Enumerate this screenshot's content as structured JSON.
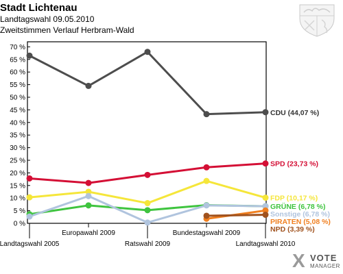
{
  "header": {
    "title": "Stadt Lichtenau",
    "subtitle": "Landtagswahl 09.05.2010",
    "subtitle2": "Zweitstimmen Verlauf Herbram-Wald"
  },
  "logo": {
    "mark": "X",
    "word1": "VOTE",
    "word2": "MANAGER"
  },
  "crest": {
    "icon": "nrw-coat-of-arms-icon"
  },
  "chart_data": {
    "type": "line",
    "title": "Stadt Lichtenau",
    "categories": [
      "Landtagswahl 2005",
      "Europawahl 2009",
      "Ratswahl 2009",
      "Bundestagswahl 2009",
      "Landtagswahl 2010"
    ],
    "ylim": [
      0,
      72
    ],
    "yticks": [
      "0 %",
      "5 %",
      "10 %",
      "15 %",
      "20 %",
      "25 %",
      "30 %",
      "35 %",
      "40 %",
      "45 %",
      "50 %",
      "55 %",
      "60 %",
      "65 %",
      "70 %"
    ],
    "grid": false,
    "series": [
      {
        "name": "CDU",
        "label": "CDU (44,07 %)",
        "color": "#4d4d4d",
        "values": [
          66.5,
          54.5,
          68,
          43.3,
          44.07
        ]
      },
      {
        "name": "SPD",
        "label": "SPD (23,73 %)",
        "color": "#d40f35",
        "values": [
          17.8,
          16,
          19.2,
          22.2,
          23.73
        ]
      },
      {
        "name": "FDP",
        "label": "FDP (10,17 %)",
        "color": "#f5e63a",
        "values": [
          10.3,
          12.5,
          8,
          16.8,
          10.17
        ]
      },
      {
        "name": "GRÜNE",
        "label": "GRÜNE (6,78 %)",
        "color": "#3fc43f",
        "values": [
          3.6,
          7.1,
          5.2,
          7.2,
          6.78
        ]
      },
      {
        "name": "Sonstige",
        "label": "Sonstige (6,78 %)",
        "color": "#b0c4de",
        "values": [
          2.7,
          10.8,
          0.3,
          7.1,
          6.78
        ]
      },
      {
        "name": "PIRATEN",
        "label": "PIRATEN (5,08 %)",
        "color": "#f07f1f",
        "values": [
          null,
          null,
          null,
          1.8,
          5.08
        ]
      },
      {
        "name": "NPD",
        "label": "NPD (3,39 %)",
        "color": "#a0521e",
        "values": [
          null,
          null,
          null,
          3,
          3.39
        ]
      }
    ]
  }
}
